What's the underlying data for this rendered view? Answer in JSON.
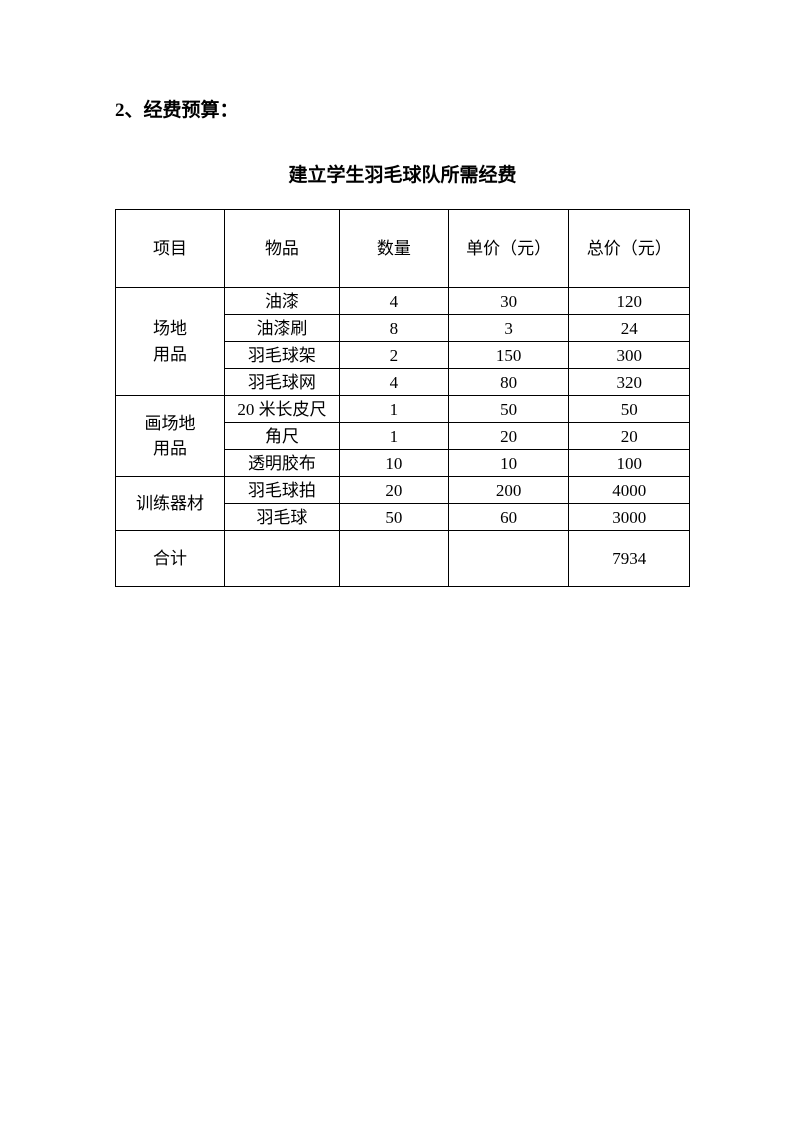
{
  "heading": "2、经费预算：",
  "table": {
    "title": "建立学生羽毛球队所需经费",
    "headers": {
      "col1": "项目",
      "col2": "物品",
      "col3": "数量",
      "col4": "单价（元）",
      "col5": "总价（元）"
    },
    "categories": [
      {
        "name": "场地\n用品",
        "rowspan": 4,
        "rows": [
          {
            "item": "油漆",
            "qty": "4",
            "unit": "30",
            "total": "120"
          },
          {
            "item": "油漆刷",
            "qty": "8",
            "unit": "3",
            "total": "24"
          },
          {
            "item": "羽毛球架",
            "qty": "2",
            "unit": "150",
            "total": "300"
          },
          {
            "item": "羽毛球网",
            "qty": "4",
            "unit": "80",
            "total": "320"
          }
        ]
      },
      {
        "name": "画场地\n用品",
        "rowspan": 3,
        "rows": [
          {
            "item": "20 米长皮尺",
            "qty": "1",
            "unit": "50",
            "total": "50"
          },
          {
            "item": "角尺",
            "qty": "1",
            "unit": "20",
            "total": "20"
          },
          {
            "item": "透明胶布",
            "qty": "10",
            "unit": "10",
            "total": "100"
          }
        ]
      },
      {
        "name": "训练器材",
        "rowspan": 2,
        "rows": [
          {
            "item": "羽毛球拍",
            "qty": "20",
            "unit": "200",
            "total": "4000"
          },
          {
            "item": "羽毛球",
            "qty": "50",
            "unit": "60",
            "total": "3000"
          }
        ]
      }
    ],
    "total": {
      "label": "合计",
      "value": "7934"
    }
  },
  "styling": {
    "page_bg": "#ffffff",
    "text_color": "#000000",
    "border_color": "#000000",
    "heading_fontsize": 19,
    "title_fontsize": 19,
    "cell_fontsize": 17,
    "header_row_height": 78,
    "data_row_height": 27,
    "total_row_height": 56,
    "column_widths": [
      "19%",
      "20%",
      "19%",
      "21%",
      "21%"
    ]
  }
}
